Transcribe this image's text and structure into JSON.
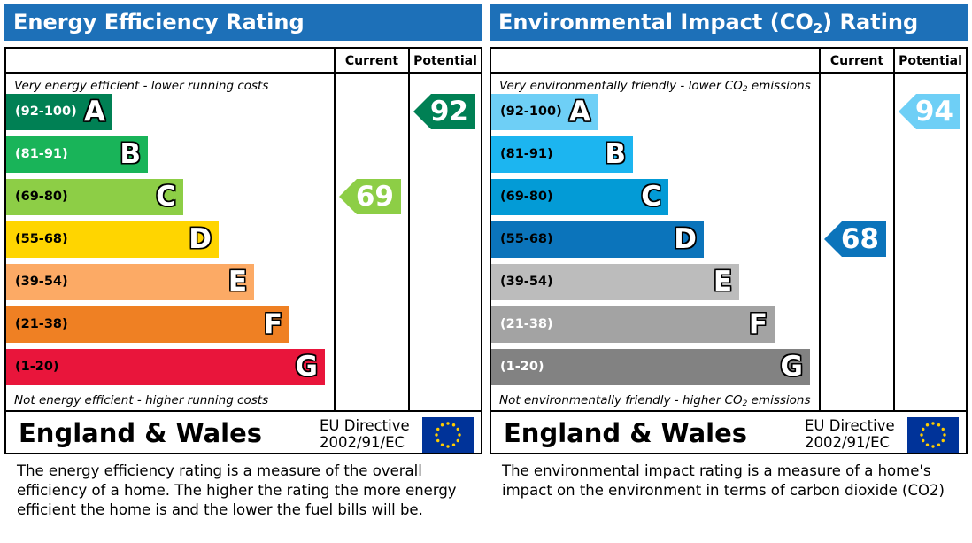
{
  "chart_data": [
    {
      "type": "bar",
      "title": "Energy Efficiency Rating",
      "columns": [
        "Current",
        "Potential"
      ],
      "top_note": "Very energy efficient - lower running costs",
      "bottom_note": "Not energy efficient - higher running costs",
      "bands": [
        {
          "range": "(92-100)",
          "letter": "A",
          "color": "#008054",
          "range_color": "#ffffff"
        },
        {
          "range": "(81-91)",
          "letter": "B",
          "color": "#19b459",
          "range_color": "#ffffff"
        },
        {
          "range": "(69-80)",
          "letter": "C",
          "color": "#8dce46",
          "range_color": "#000000"
        },
        {
          "range": "(55-68)",
          "letter": "D",
          "color": "#ffd500",
          "range_color": "#000000"
        },
        {
          "range": "(39-54)",
          "letter": "E",
          "color": "#fcaa65",
          "range_color": "#000000"
        },
        {
          "range": "(21-38)",
          "letter": "F",
          "color": "#ef8023",
          "range_color": "#000000"
        },
        {
          "range": "(1-20)",
          "letter": "G",
          "color": "#e9153b",
          "range_color": "#000000"
        }
      ],
      "current": {
        "value": 69,
        "band_index": 2,
        "color": "#8dce46"
      },
      "potential": {
        "value": 92,
        "band_index": 0,
        "color": "#008054"
      },
      "footer": {
        "region": "England & Wales",
        "directive_line1": "EU Directive",
        "directive_line2": "2002/91/EC"
      },
      "description": "The energy efficiency rating is a measure of the overall\nefficiency of a home.  The higher the rating the more energy\nefficient the home is and the lower the fuel bills will be."
    },
    {
      "type": "bar",
      "title_main": "Environmental Impact (CO",
      "title_sub": "2",
      "title_end": ") Rating",
      "columns": [
        "Current",
        "Potential"
      ],
      "top_note_main": "Very environmentally friendly - lower CO",
      "top_note_sub": "2",
      "top_note_end": " emissions",
      "bottom_note_main": "Not environmentally friendly - higher CO",
      "bottom_note_sub": "2",
      "bottom_note_end": " emissions",
      "bands": [
        {
          "range": "(92-100)",
          "letter": "A",
          "color": "#6ecff6",
          "range_color": "#000000"
        },
        {
          "range": "(81-91)",
          "letter": "B",
          "color": "#1cb5f0",
          "range_color": "#000000"
        },
        {
          "range": "(69-80)",
          "letter": "C",
          "color": "#039bd6",
          "range_color": "#000000"
        },
        {
          "range": "(55-68)",
          "letter": "D",
          "color": "#0b74bb",
          "range_color": "#000000"
        },
        {
          "range": "(39-54)",
          "letter": "E",
          "color": "#bcbcbc",
          "range_color": "#000000"
        },
        {
          "range": "(21-38)",
          "letter": "F",
          "color": "#a3a3a3",
          "range_color": "#ffffff"
        },
        {
          "range": "(1-20)",
          "letter": "G",
          "color": "#828282",
          "range_color": "#ffffff"
        }
      ],
      "current": {
        "value": 68,
        "band_index": 3,
        "color": "#0b74bb"
      },
      "potential": {
        "value": 94,
        "band_index": 0,
        "color": "#6ecff6"
      },
      "footer": {
        "region": "England & Wales",
        "directive_line1": "EU Directive",
        "directive_line2": "2002/91/EC"
      },
      "description": "The environmental impact rating is a measure of a home's\nimpact on the environment in terms of carbon dioxide (CO2)"
    }
  ]
}
